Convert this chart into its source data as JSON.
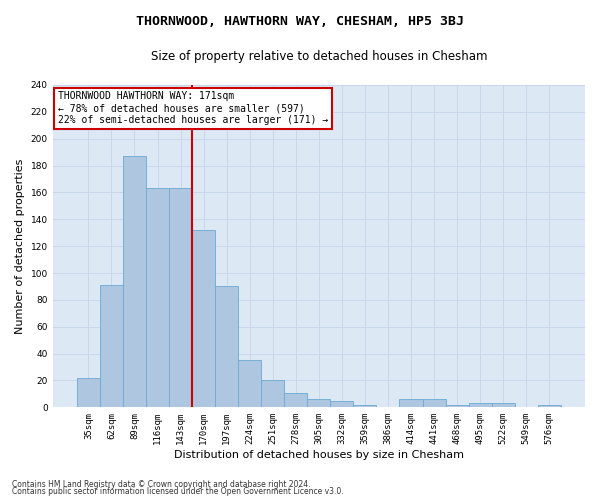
{
  "title": "THORNWOOD, HAWTHORN WAY, CHESHAM, HP5 3BJ",
  "subtitle": "Size of property relative to detached houses in Chesham",
  "xlabel": "Distribution of detached houses by size in Chesham",
  "ylabel": "Number of detached properties",
  "footnote1": "Contains HM Land Registry data © Crown copyright and database right 2024.",
  "footnote2": "Contains public sector information licensed under the Open Government Licence v3.0.",
  "categories": [
    "35sqm",
    "62sqm",
    "89sqm",
    "116sqm",
    "143sqm",
    "170sqm",
    "197sqm",
    "224sqm",
    "251sqm",
    "278sqm",
    "305sqm",
    "332sqm",
    "359sqm",
    "386sqm",
    "414sqm",
    "441sqm",
    "468sqm",
    "495sqm",
    "522sqm",
    "549sqm",
    "576sqm"
  ],
  "values": [
    22,
    91,
    187,
    163,
    163,
    132,
    90,
    35,
    20,
    11,
    6,
    5,
    2,
    0,
    6,
    6,
    2,
    3,
    3,
    0,
    2
  ],
  "bar_color": "#aec6df",
  "bar_edge_color": "#6aaad4",
  "highlight_line_color": "#cc0000",
  "annotation_text": "THORNWOOD HAWTHORN WAY: 171sqm\n← 78% of detached houses are smaller (597)\n22% of semi-detached houses are larger (171) →",
  "annotation_box_color": "#ffffff",
  "annotation_box_edge_color": "#cc0000",
  "ylim": [
    0,
    240
  ],
  "yticks": [
    0,
    20,
    40,
    60,
    80,
    100,
    120,
    140,
    160,
    180,
    200,
    220,
    240
  ],
  "grid_color": "#c8d8ea",
  "bg_color": "#dce9f5",
  "title_fontsize": 9.5,
  "subtitle_fontsize": 8.5,
  "xlabel_fontsize": 8,
  "ylabel_fontsize": 8,
  "tick_fontsize": 6.5,
  "annotation_fontsize": 7,
  "footnote_fontsize": 5.5
}
